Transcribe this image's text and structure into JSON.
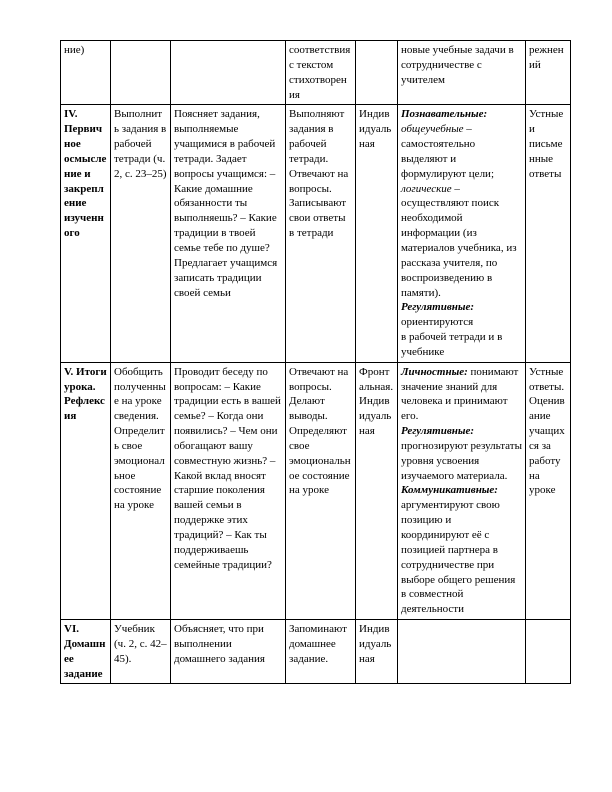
{
  "rows": [
    {
      "c1": "ние)",
      "c2": "",
      "c3": "",
      "c4": "соответствия с текстом стихотворения",
      "c5": "",
      "c6": "новые учебные задачи в сотрудничестве с учителем",
      "c7": "режнений"
    },
    {
      "c1_html": "<b>IV. Первичное осмысление и закрепление изученного</b>",
      "c2": "Выполнить задания в рабочей тетради (ч. 2,\nс. 23–25)",
      "c3": "Поясняет задания, выполняемые учащимися в рабочей тетради. Задает вопросы учащимся:\n– Какие домашние обязанности ты выполняешь?\n– Какие традиции в твоей семье тебе по душе?\nПредлагает учащимся записать традиции своей семьи",
      "c4": "Выполняют задания в рабочей тетради.\nОтвечают на вопросы.\nЗаписывают свои ответы в тетради",
      "c5": "Индивидуальная",
      "c6_html": "<i><b>Познавательные:</b> общеучебные</i> – самостоятельно выделяют и формулируют цели; <i>логические</i> – осуществляют поиск необходимой информации (из материалов учебника, из рассказа учителя, по воспроизведению в памяти).<br><i><b>Регулятивные:</b></i> ориентируются<br>в рабочей тетради и в учебнике",
      "c7": "Устные и письменные ответы"
    },
    {
      "c1_html": "<b>V. Итоги урока. Рефлексия</b>",
      "c2": "Обобщить полученные на уроке сведения. Определить свое эмоциональное состояние на уроке",
      "c3": "Проводит беседу по вопросам:\n– Какие традиции есть в вашей семье?\n– Когда они появились?\n– Чем они обогащают вашу совместную жизнь?\n– Какой вклад вносят старшие поколения вашей семьи в поддержке этих традиций?\n– Как ты поддерживаешь семейные традиции?",
      "c4": "Отвечают на вопросы. Делают выводы.\nОпределяют свое эмоциональное состояние на уроке",
      "c5": "Фронтальная. Индивидуальная",
      "c6_html": "<i><b>Личностные:</b></i> понимают значение знаний для человека и принимают его.<br><i><b>Регулятивные:</b></i> прогнозируют результаты уровня усвоения изучаемого материала.<br><i><b>Коммуникативные:</b></i> аргументируют свою позицию и координируют её с позицией партнера в сотрудничестве при выборе общего решения в совместной деятельности",
      "c7": "Устные ответы.\nОценивание учащихся за работу на уроке"
    },
    {
      "c1_html": "<b>VI. Домашнее задание</b>",
      "c2": "Учебник (ч. 2,\nс. 42–45).",
      "c3": "Объясняет, что при выполнении домашнего задания",
      "c4": "Запоминают домашнее задание.",
      "c5": "Индивидуальная",
      "c6": "",
      "c7": ""
    }
  ]
}
